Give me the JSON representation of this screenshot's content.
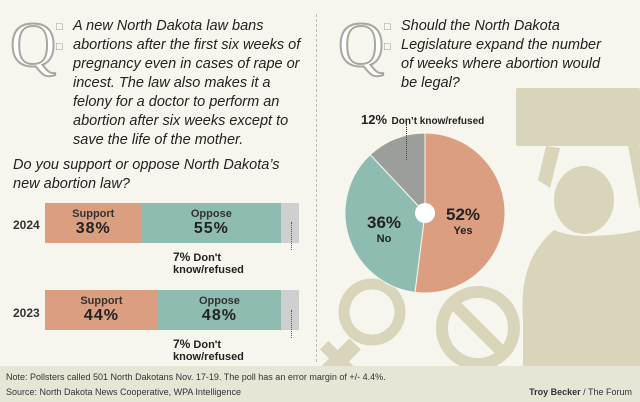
{
  "left": {
    "q_glyph": "Q",
    "question_lines": [
      "A new North Dakota law bans",
      "abortions after the first six weeks of",
      "pregnancy even in cases of rape or",
      "incest. The law also makes it a",
      "felony for a doctor to perform an",
      "abortion after six weeks except to",
      "save the life of the mother."
    ],
    "sub_lines": [
      "Do you support or oppose North Dakota’s",
      "new abortion law?"
    ]
  },
  "right": {
    "q_glyph": "Q",
    "question_lines": [
      "Should the North Dakota",
      "Legislature expand the number",
      "of weeks where abortion would",
      "be legal?"
    ]
  },
  "chart_data": [
    {
      "type": "bar",
      "orientation": "horizontal-stacked",
      "categories": [
        "2024",
        "2023"
      ],
      "series": [
        {
          "name": "Support",
          "values": [
            38,
            44
          ],
          "labels": [
            "38%",
            "44%"
          ]
        },
        {
          "name": "Oppose",
          "values": [
            55,
            48
          ],
          "labels": [
            "55%",
            "48%"
          ]
        },
        {
          "name": "Don't know/refused",
          "values": [
            7,
            7
          ],
          "labels": [
            "7%",
            "7%"
          ]
        }
      ],
      "colors": {
        "Support": "#dc9e80",
        "Oppose": "#8fbcb0",
        "Don't know/refused": "#cfcfcf"
      }
    },
    {
      "type": "pie",
      "slices": [
        {
          "name": "Yes",
          "value": 52,
          "label": "52%",
          "color": "#dc9e80"
        },
        {
          "name": "No",
          "value": 36,
          "label": "36%",
          "color": "#8fbcb0"
        },
        {
          "name": "Don’t know/refused",
          "value": 12,
          "label": "12%",
          "color": "#9b9e9a"
        }
      ]
    }
  ],
  "footer": {
    "note": "Note: Pollsters called 501 North Dakotans Nov. 17-19. The poll has an error margin of +/- 4.4%.",
    "source": "Source: North Dakota News Cooperative, WPA Intelligence",
    "credit_name": "Troy Becker",
    "credit_org": " / The Forum"
  }
}
